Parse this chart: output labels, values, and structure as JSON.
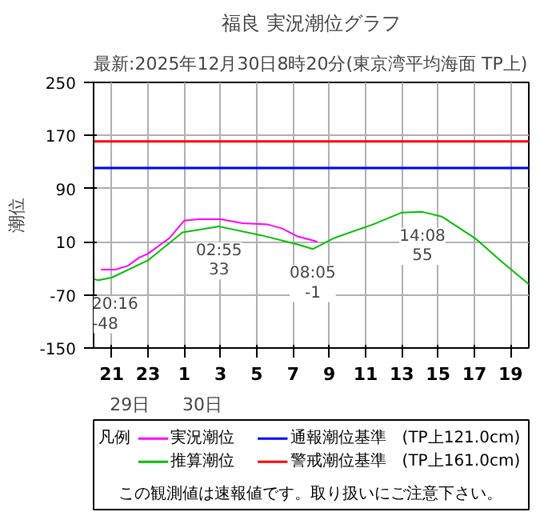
{
  "chart_data": {
    "type": "line",
    "title": "福良 実況潮位グラフ",
    "subtitle": "最新:2025年12月30日8時20分(東京湾平均海面 TP上)",
    "ylabel": "潮位",
    "legend_title": "凡例",
    "series": [
      {
        "name": "実況潮位",
        "color": "#ff00ff",
        "x": [
          "2025-12-29T20:24",
          "2025-12-29T21:12",
          "2025-12-29T21:54",
          "2025-12-29T22:30",
          "2025-12-29T23:00",
          "2025-12-30T00:12",
          "2025-12-30T01:00",
          "2025-12-30T01:48",
          "2025-12-30T03:00",
          "2025-12-30T04:12",
          "2025-12-30T05:36",
          "2025-12-30T06:24",
          "2025-12-30T07:15",
          "2025-12-30T08:05",
          "2025-12-30T08:20"
        ],
        "values": [
          -32,
          -32,
          -26,
          -14,
          -8,
          16,
          42,
          44,
          44,
          38,
          36,
          30,
          18,
          12,
          10
        ]
      },
      {
        "name": "推算潮位",
        "color": "#00c000",
        "x": [
          "2025-12-29T20:00",
          "2025-12-29T20:16",
          "2025-12-29T21:00",
          "2025-12-29T23:00",
          "2025-12-30T00:54",
          "2025-12-30T02:55",
          "2025-12-30T05:12",
          "2025-12-30T07:15",
          "2025-12-30T08:05",
          "2025-12-30T09:18",
          "2025-12-30T11:24",
          "2025-12-30T13:00",
          "2025-12-30T14:08",
          "2025-12-30T15:12",
          "2025-12-30T17:06",
          "2025-12-30T18:30",
          "2025-12-30T20:00"
        ],
        "values": [
          -46,
          -48,
          -44,
          -18,
          24,
          33,
          20,
          6,
          -1,
          16,
          36,
          54,
          55,
          48,
          14,
          -20,
          -54
        ]
      }
    ],
    "ref_lines": [
      {
        "axis": "y",
        "value": 121,
        "label": "通報潮位基準　(TP上121.0cm)",
        "color": "#0000ff"
      },
      {
        "axis": "y",
        "value": 161,
        "label": "警戒潮位基準　(TP上161.0cm)",
        "color": "#ff0000"
      }
    ],
    "annotations": [
      {
        "text": "20:16\n-48",
        "x": "2025-12-29T20:16",
        "y": -48
      },
      {
        "text": "02:55\n33",
        "x": "2025-12-30T02:55",
        "y": 33
      },
      {
        "text": "08:05\n-1",
        "x": "2025-12-30T08:05",
        "y": -1
      },
      {
        "text": "14:08\n55",
        "x": "2025-12-30T14:08",
        "y": 55
      },
      "29日",
      "30日",
      "この観測値は速報値です。取り扱いにご注意下さい。"
    ],
    "xlim": [
      "2025-12-29T20:00",
      "2025-12-30T20:00"
    ],
    "ylim": [
      -150,
      250
    ],
    "xticks": [
      {
        "value": "2025-12-29T21:00",
        "label": "21"
      },
      {
        "value": "2025-12-29T23:00",
        "label": "23"
      },
      {
        "value": "2025-12-30T01:00",
        "label": "1"
      },
      {
        "value": "2025-12-30T03:00",
        "label": "3"
      },
      {
        "value": "2025-12-30T05:00",
        "label": "5"
      },
      {
        "value": "2025-12-30T07:00",
        "label": "7"
      },
      {
        "value": "2025-12-30T09:00",
        "label": "9"
      },
      {
        "value": "2025-12-30T11:00",
        "label": "11"
      },
      {
        "value": "2025-12-30T13:00",
        "label": "13"
      },
      {
        "value": "2025-12-30T15:00",
        "label": "15"
      },
      {
        "value": "2025-12-30T17:00",
        "label": "17"
      },
      {
        "value": "2025-12-30T19:00",
        "label": "19"
      }
    ],
    "yticks": [
      -150,
      -70,
      10,
      90,
      170,
      250
    ],
    "grid": true,
    "legend": "bottom"
  }
}
